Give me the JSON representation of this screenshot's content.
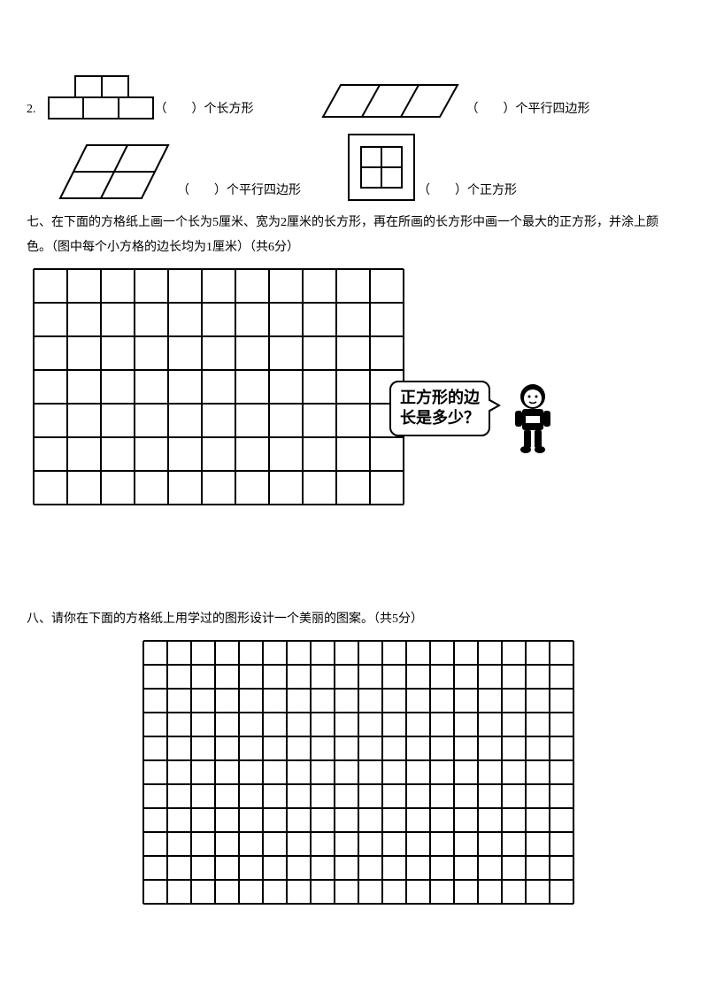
{
  "q2": {
    "number": "2.",
    "fig_a_label": "（　　）个长方形",
    "fig_b_label": "（　　）个平行四边形",
    "fig_c_label": "（　　）个平行四边形",
    "fig_d_label": "（　　）个正方形",
    "stroke": "#000000",
    "stroke_width": 2
  },
  "q7": {
    "text": "七、在下面的方格纸上画一个长为5厘米、宽为2厘米的长方形，再在所画的长方形中画一个最大的正方形，并涂上颜色。（图中每个小方格的边长均为1厘米）（共6分）",
    "grid": {
      "cols": 11,
      "rows": 7,
      "cell": 38,
      "stroke": "#000000",
      "stroke_width": 2
    },
    "bubble_line1": "正方形的边",
    "bubble_line2": "长是多少？"
  },
  "q8": {
    "text": "八、请你在下面的方格纸上用学过的图形设计一个美丽的图案。（共5分）",
    "grid": {
      "cols": 18,
      "rows": 11,
      "cell": 27,
      "stroke": "#000000",
      "stroke_width": 2
    }
  },
  "colors": {
    "text": "#000000",
    "bg": "#ffffff"
  }
}
